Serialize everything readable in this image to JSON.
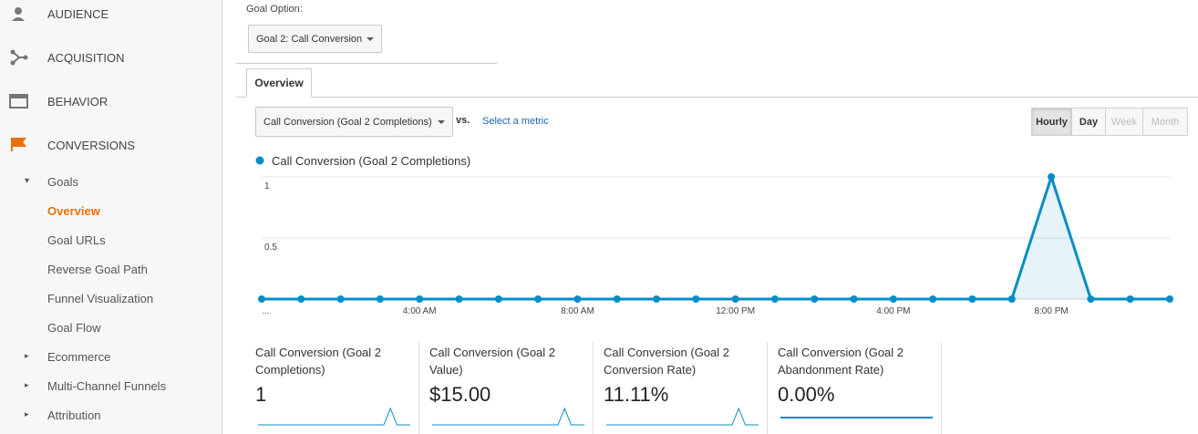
{
  "sidebar": {
    "sections": [
      "AUDIENCE",
      "ACQUISITION",
      "BEHAVIOR",
      "CONVERSIONS"
    ],
    "group": "Goals",
    "items": [
      "Overview",
      "Goal URLs",
      "Reverse Goal Path",
      "Funnel Visualization",
      "Goal Flow"
    ],
    "collapsed": [
      "Ecommerce",
      "Multi-Channel Funnels",
      "Attribution"
    ]
  },
  "goal_option": {
    "label": "Goal Option:",
    "selected": "Goal 2: Call Conversion"
  },
  "tab": "Overview",
  "metric": {
    "selected": "Call Conversion (Goal 2 Completions)",
    "vs": "vs.",
    "link": "Select a metric"
  },
  "granularity": [
    "Hourly",
    "Day",
    "Week",
    "Month"
  ],
  "chart_data": {
    "type": "line",
    "legend_position": "top-left",
    "categories": [
      "...",
      null,
      null,
      null,
      "4:00 AM",
      null,
      null,
      null,
      "8:00 AM",
      null,
      null,
      null,
      "12:00 PM",
      null,
      null,
      null,
      "4:00 PM",
      null,
      null,
      null,
      "8:00 PM",
      null,
      null,
      null
    ],
    "series": [
      {
        "name": "Call Conversion (Goal 2 Completions)",
        "color": "#058dc7",
        "values": [
          0,
          0,
          0,
          0,
          0,
          0,
          0,
          0,
          0,
          0,
          0,
          0,
          0,
          0,
          0,
          0,
          0,
          0,
          0,
          0,
          1,
          0,
          0,
          0
        ]
      }
    ],
    "ylim": [
      0,
      1
    ],
    "yticks": [
      0.5,
      1
    ],
    "grid": true
  },
  "scorecards": [
    {
      "label": "Call Conversion (Goal 2 Completions)",
      "value": "1",
      "sparkline": [
        0,
        0,
        0,
        0,
        0,
        0,
        0,
        0,
        0,
        0,
        0,
        0,
        0,
        0,
        0,
        0,
        0,
        0,
        0,
        0,
        1,
        0,
        0,
        0
      ]
    },
    {
      "label": "Call Conversion (Goal 2 Value)",
      "value": "$15.00",
      "sparkline": [
        0,
        0,
        0,
        0,
        0,
        0,
        0,
        0,
        0,
        0,
        0,
        0,
        0,
        0,
        0,
        0,
        0,
        0,
        0,
        0,
        15,
        0,
        0,
        0
      ]
    },
    {
      "label": "Call Conversion (Goal 2 Conversion Rate)",
      "value": "11.11%",
      "sparkline": [
        0,
        0,
        0,
        0,
        0,
        0,
        0,
        0,
        0,
        0,
        0,
        0,
        0,
        0,
        0,
        0,
        0,
        0,
        0,
        0,
        100,
        0,
        0,
        0
      ]
    },
    {
      "label": "Call Conversion (Goal 2 Abandonment Rate)",
      "value": "0.00%",
      "sparkline": [
        0,
        0,
        0,
        0,
        0,
        0,
        0,
        0,
        0,
        0,
        0,
        0,
        0,
        0,
        0,
        0,
        0,
        0,
        0,
        0,
        0,
        0,
        0,
        0
      ]
    }
  ]
}
